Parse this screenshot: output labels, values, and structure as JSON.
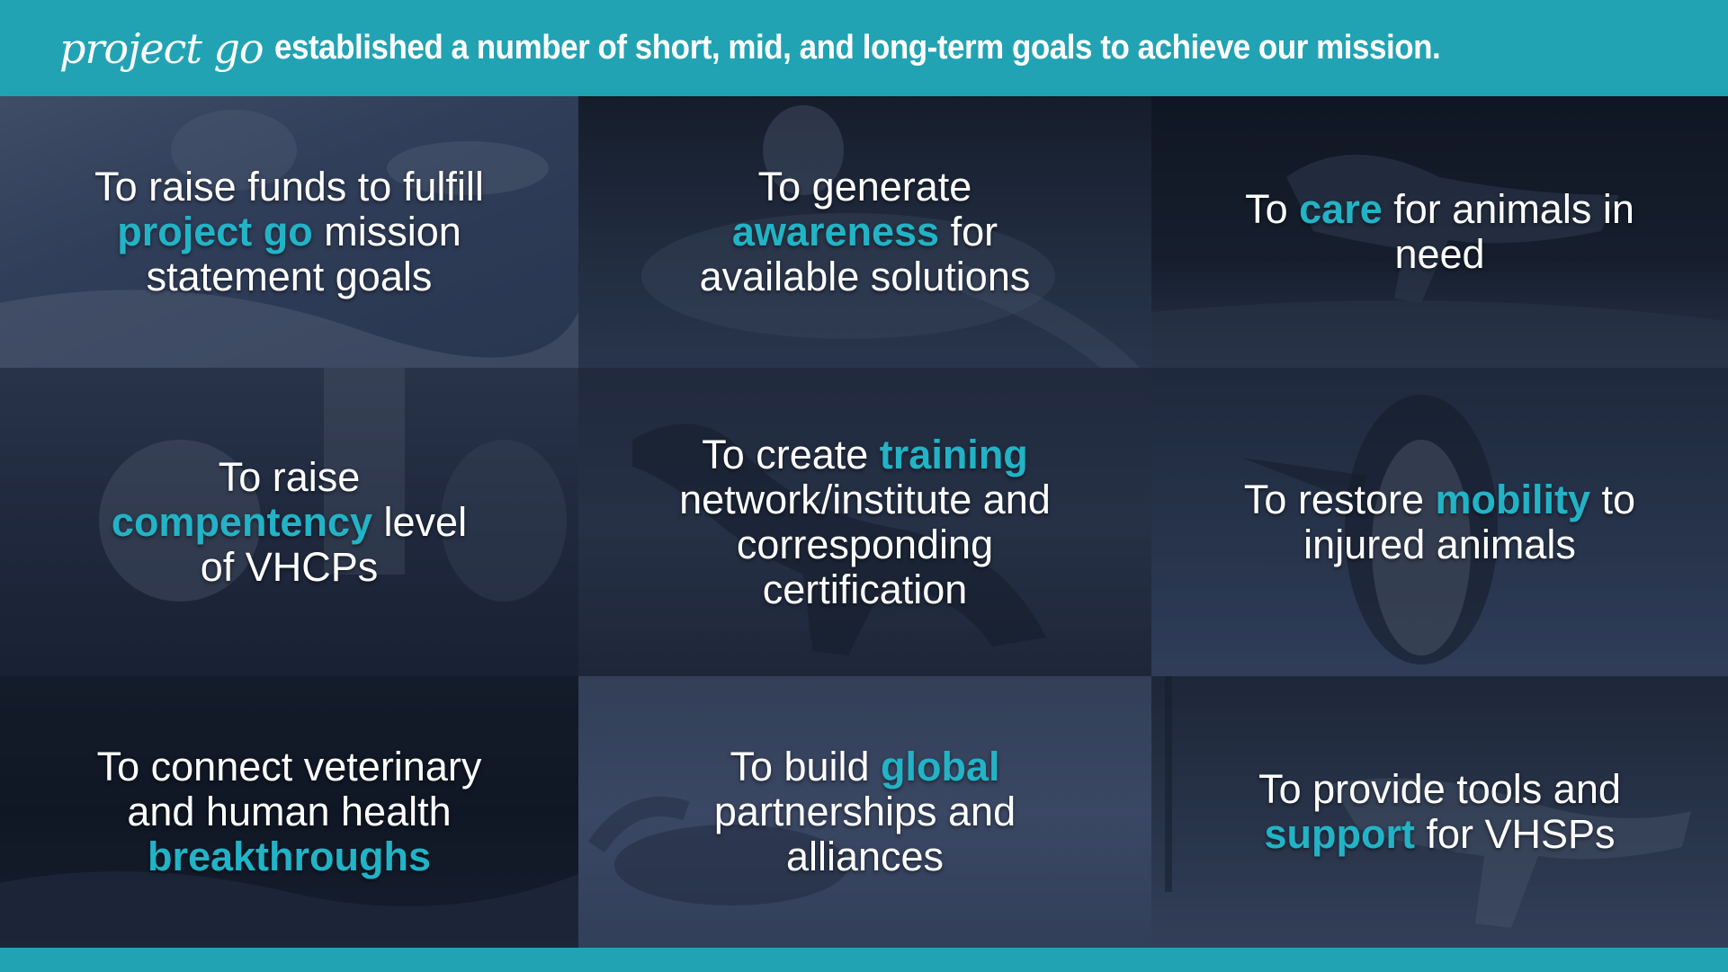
{
  "header": {
    "brand": "project go",
    "headline": "established a number of short, mid, and long-term goals to achieve our mission."
  },
  "goals": [
    {
      "pre": "To raise funds to fulfill ",
      "highlight": "project go",
      "post": " mission statement goals"
    },
    {
      "pre": "To generate ",
      "highlight": "awareness",
      "post": " for available solutions"
    },
    {
      "pre": "To ",
      "highlight": "care",
      "post": " for animals in need"
    },
    {
      "pre": "To raise ",
      "highlight": "compentency",
      "post": " level of VHCPs"
    },
    {
      "pre": "To create ",
      "highlight": "training",
      "post": " network/institute and corresponding certification"
    },
    {
      "pre": "To restore ",
      "highlight": "mobility",
      "post": " to injured animals"
    },
    {
      "pre": "To connect veterinary and human health ",
      "highlight": "breakthroughs",
      "post": ""
    },
    {
      "pre": "To build ",
      "highlight": "global",
      "post": " partnerships and alliances"
    },
    {
      "pre": "To provide tools and ",
      "highlight": "support",
      "post": " for VHSPs"
    }
  ],
  "colors": {
    "accent": "#21a3b4",
    "highlight_text": "#22b3c6",
    "tile_overlay": "#2b3a55"
  },
  "photo_subjects": [
    "snow-leopard-photo",
    "sea-turtle-photo",
    "running-dog-photo",
    "husky-dog-photo",
    "shepherd-dog-photo",
    "penguin-photo",
    "turtle-shore-photo",
    "snow-leopard-walking-photo",
    "running-wolf-photo"
  ]
}
